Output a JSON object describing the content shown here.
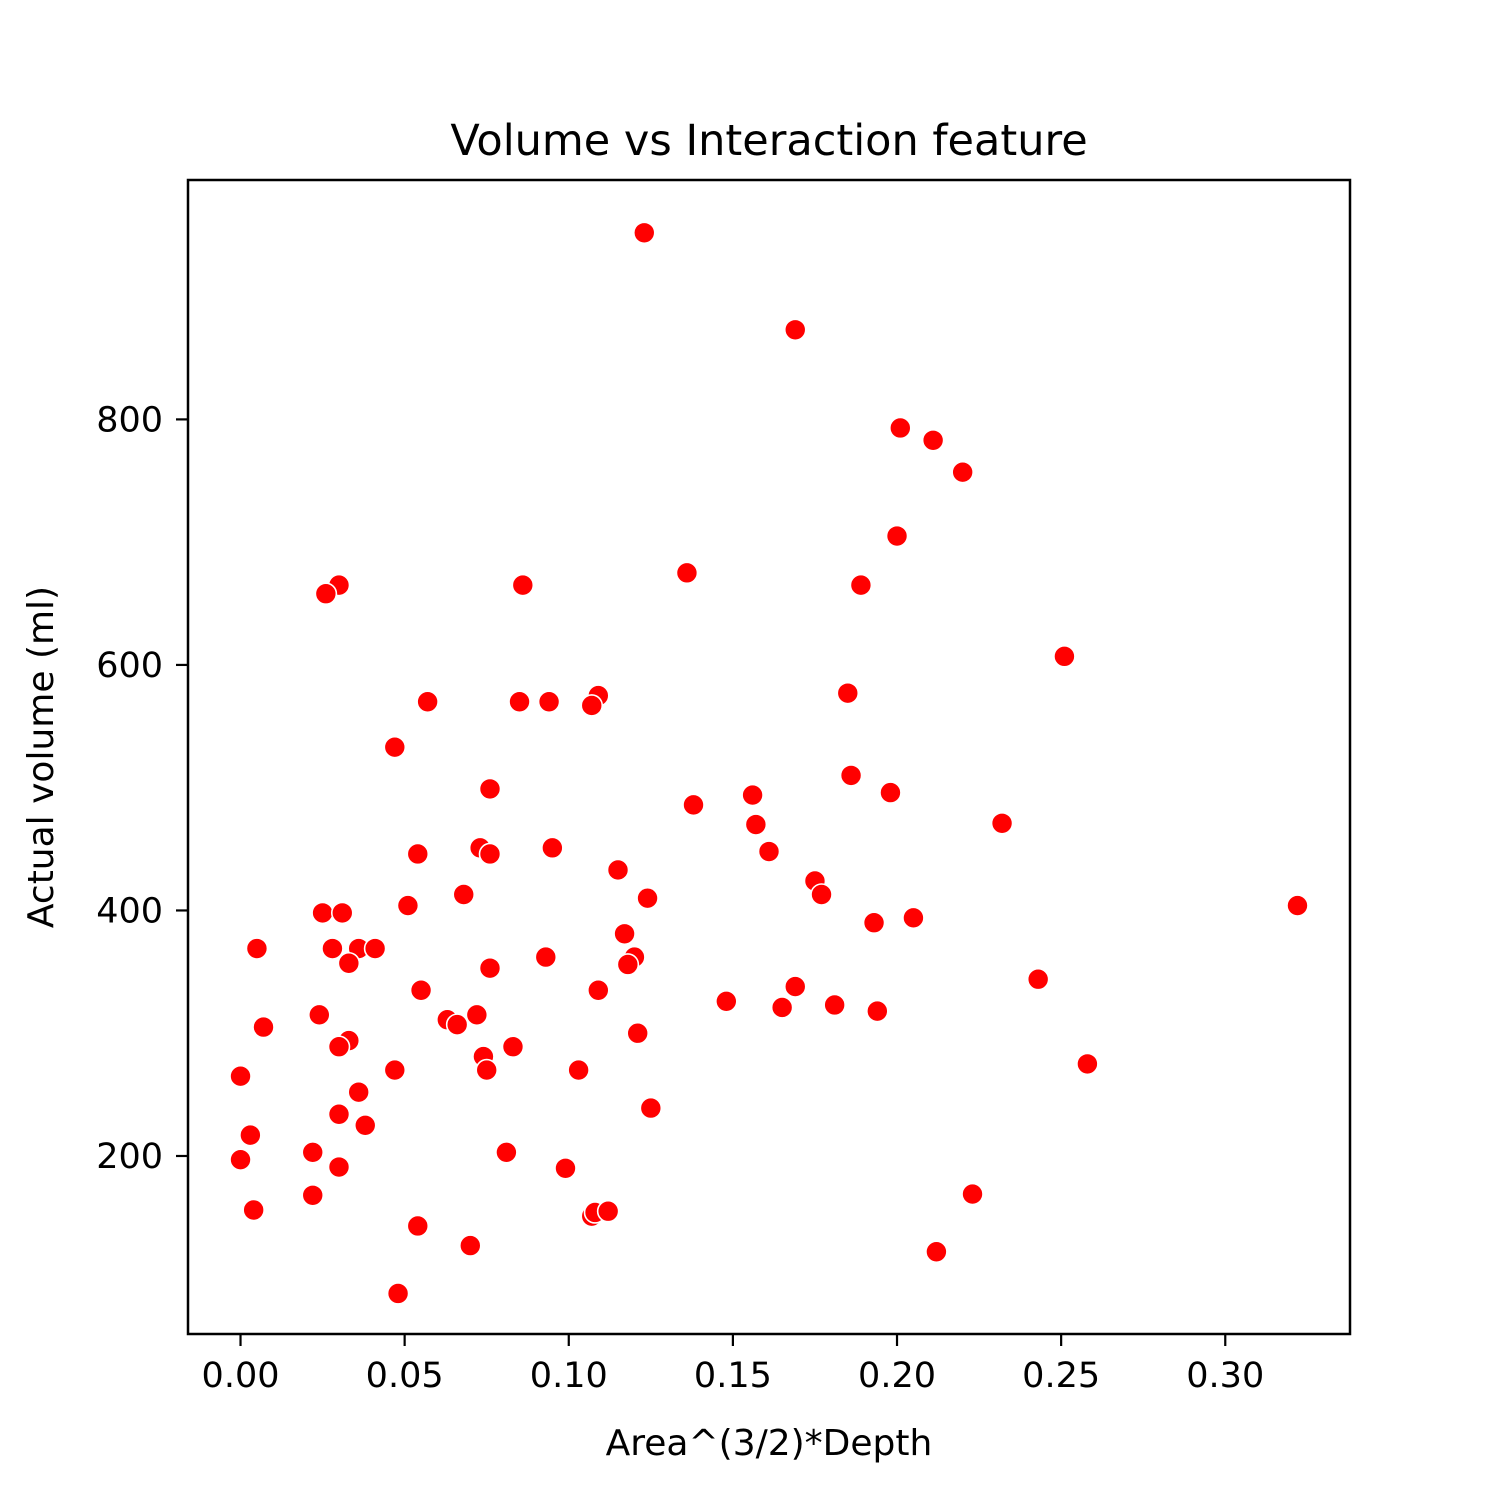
{
  "chart_data": {
    "type": "scatter",
    "title": "Volume vs Interaction feature",
    "xlabel": "Area^(3/2)*Depth",
    "ylabel": "Actual volume (ml)",
    "xlim": [
      -0.016,
      0.338
    ],
    "ylim": [
      55,
      995
    ],
    "xticks": [
      0.0,
      0.05,
      0.1,
      0.15,
      0.2,
      0.25,
      0.3
    ],
    "xtick_labels": [
      "0.00",
      "0.05",
      "0.10",
      "0.15",
      "0.20",
      "0.25",
      "0.30"
    ],
    "yticks": [
      200,
      400,
      600,
      800
    ],
    "ytick_labels": [
      "200",
      "400",
      "600",
      "800"
    ],
    "grid": false,
    "legend": "none",
    "marker_color": "#ff0000",
    "marker_edge_color": "#ffffff",
    "series": [
      {
        "points": [
          [
            0.123,
            952
          ],
          [
            0.169,
            873
          ],
          [
            0.201,
            793
          ],
          [
            0.211,
            783
          ],
          [
            0.22,
            757
          ],
          [
            0.2,
            705
          ],
          [
            0.136,
            675
          ],
          [
            0.03,
            665
          ],
          [
            0.026,
            658
          ],
          [
            0.086,
            665
          ],
          [
            0.189,
            665
          ],
          [
            0.251,
            607
          ],
          [
            0.057,
            570
          ],
          [
            0.085,
            570
          ],
          [
            0.094,
            570
          ],
          [
            0.109,
            575
          ],
          [
            0.107,
            567
          ],
          [
            0.185,
            577
          ],
          [
            0.047,
            533
          ],
          [
            0.076,
            499
          ],
          [
            0.138,
            486
          ],
          [
            0.156,
            494
          ],
          [
            0.198,
            496
          ],
          [
            0.186,
            510
          ],
          [
            0.157,
            470
          ],
          [
            0.232,
            471
          ],
          [
            0.054,
            446
          ],
          [
            0.073,
            451
          ],
          [
            0.076,
            446
          ],
          [
            0.095,
            451
          ],
          [
            0.161,
            448
          ],
          [
            0.115,
            433
          ],
          [
            0.175,
            424
          ],
          [
            0.177,
            413
          ],
          [
            0.068,
            413
          ],
          [
            0.124,
            410
          ],
          [
            0.051,
            404
          ],
          [
            0.025,
            398
          ],
          [
            0.031,
            398
          ],
          [
            0.193,
            390
          ],
          [
            0.205,
            394
          ],
          [
            0.322,
            404
          ],
          [
            0.117,
            381
          ],
          [
            0.005,
            369
          ],
          [
            0.028,
            369
          ],
          [
            0.036,
            369
          ],
          [
            0.041,
            369
          ],
          [
            0.033,
            357
          ],
          [
            0.076,
            353
          ],
          [
            0.093,
            362
          ],
          [
            0.12,
            362
          ],
          [
            0.118,
            356
          ],
          [
            0.169,
            338
          ],
          [
            0.243,
            344
          ],
          [
            0.055,
            335
          ],
          [
            0.109,
            335
          ],
          [
            0.148,
            326
          ],
          [
            0.165,
            321
          ],
          [
            0.181,
            323
          ],
          [
            0.194,
            318
          ],
          [
            0.007,
            305
          ],
          [
            0.024,
            315
          ],
          [
            0.063,
            311
          ],
          [
            0.066,
            307
          ],
          [
            0.072,
            315
          ],
          [
            0.121,
            300
          ],
          [
            0.033,
            294
          ],
          [
            0.03,
            289
          ],
          [
            0.083,
            289
          ],
          [
            0.074,
            281
          ],
          [
            0.075,
            270
          ],
          [
            0.258,
            275
          ],
          [
            0.0,
            265
          ],
          [
            0.047,
            270
          ],
          [
            0.103,
            270
          ],
          [
            0.036,
            252
          ],
          [
            0.125,
            239
          ],
          [
            0.03,
            234
          ],
          [
            0.038,
            225
          ],
          [
            0.003,
            217
          ],
          [
            0.022,
            203
          ],
          [
            0.081,
            203
          ],
          [
            0.0,
            197
          ],
          [
            0.03,
            191
          ],
          [
            0.099,
            190
          ],
          [
            0.022,
            168
          ],
          [
            0.223,
            169
          ],
          [
            0.004,
            156
          ],
          [
            0.107,
            151
          ],
          [
            0.108,
            154
          ],
          [
            0.112,
            155
          ],
          [
            0.054,
            143
          ],
          [
            0.07,
            127
          ],
          [
            0.212,
            122
          ],
          [
            0.048,
            88
          ]
        ]
      }
    ]
  }
}
